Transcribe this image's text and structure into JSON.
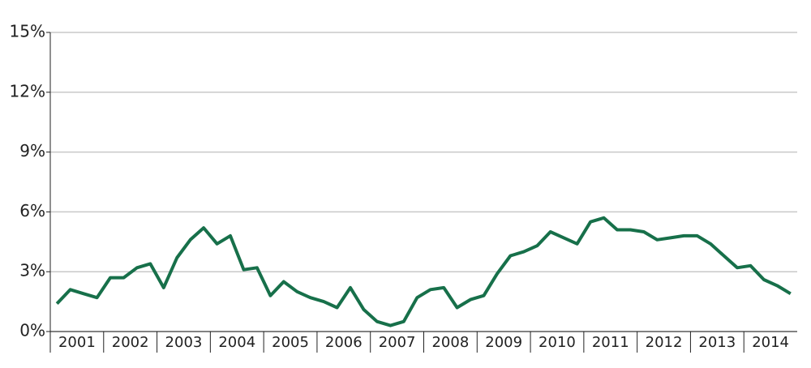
{
  "chart_data": {
    "type": "line",
    "categories": [
      "2001",
      null,
      null,
      null,
      "2002",
      null,
      null,
      null,
      "2003",
      null,
      null,
      null,
      "2004",
      null,
      null,
      null,
      "2005",
      null,
      null,
      null,
      "2006",
      null,
      null,
      null,
      "2007",
      null,
      null,
      null,
      "2008",
      null,
      null,
      null,
      "2009",
      null,
      null,
      null,
      "2010",
      null,
      null,
      null,
      "2011",
      null,
      null,
      null,
      "2012",
      null,
      null,
      null,
      "2013",
      null,
      null,
      null,
      "2014",
      null,
      null,
      null
    ],
    "series": [
      {
        "color": "#17704a",
        "values": [
          1.4,
          2.1,
          1.9,
          1.7,
          2.7,
          2.7,
          3.2,
          3.4,
          2.2,
          3.7,
          4.6,
          5.2,
          4.4,
          4.8,
          3.1,
          3.2,
          1.8,
          2.5,
          2.0,
          1.7,
          1.5,
          1.2,
          2.2,
          1.1,
          0.5,
          0.3,
          0.5,
          1.7,
          2.1,
          2.2,
          1.2,
          1.6,
          1.8,
          2.9,
          3.8,
          4.0,
          4.3,
          5.0,
          4.7,
          4.4,
          5.5,
          5.7,
          5.1,
          5.1,
          5.0,
          4.6,
          4.7,
          4.8,
          4.8,
          4.4,
          3.8,
          3.2,
          3.3,
          2.6,
          2.3,
          1.9
        ]
      }
    ],
    "ylim": [
      0,
      15
    ],
    "yticks": [
      {
        "value": 0,
        "label": "0%"
      },
      {
        "value": 3,
        "label": "3%"
      },
      {
        "value": 6,
        "label": "6%"
      },
      {
        "value": 9,
        "label": "9%"
      },
      {
        "value": 12,
        "label": "12%"
      },
      {
        "value": 15,
        "label": "15%"
      }
    ],
    "grid": true
  }
}
